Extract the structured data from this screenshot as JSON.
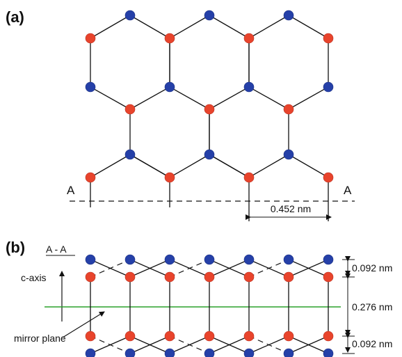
{
  "panel_a": {
    "label": "(a)",
    "section_left": "A",
    "section_right": "A",
    "spacing": "0.452 nm"
  },
  "panel_b": {
    "label": "(b)",
    "section_title": "A - A",
    "axis_label": "c-axis",
    "plane_label": "mirror plane",
    "dim_top": "0.092 nm",
    "dim_middle": "0.276 nm",
    "dim_bottom": "0.092 nm",
    "mirror_color": "#2aa02a"
  },
  "colors": {
    "red_atom": "#e8442c",
    "blue_atom": "#2540a8"
  }
}
